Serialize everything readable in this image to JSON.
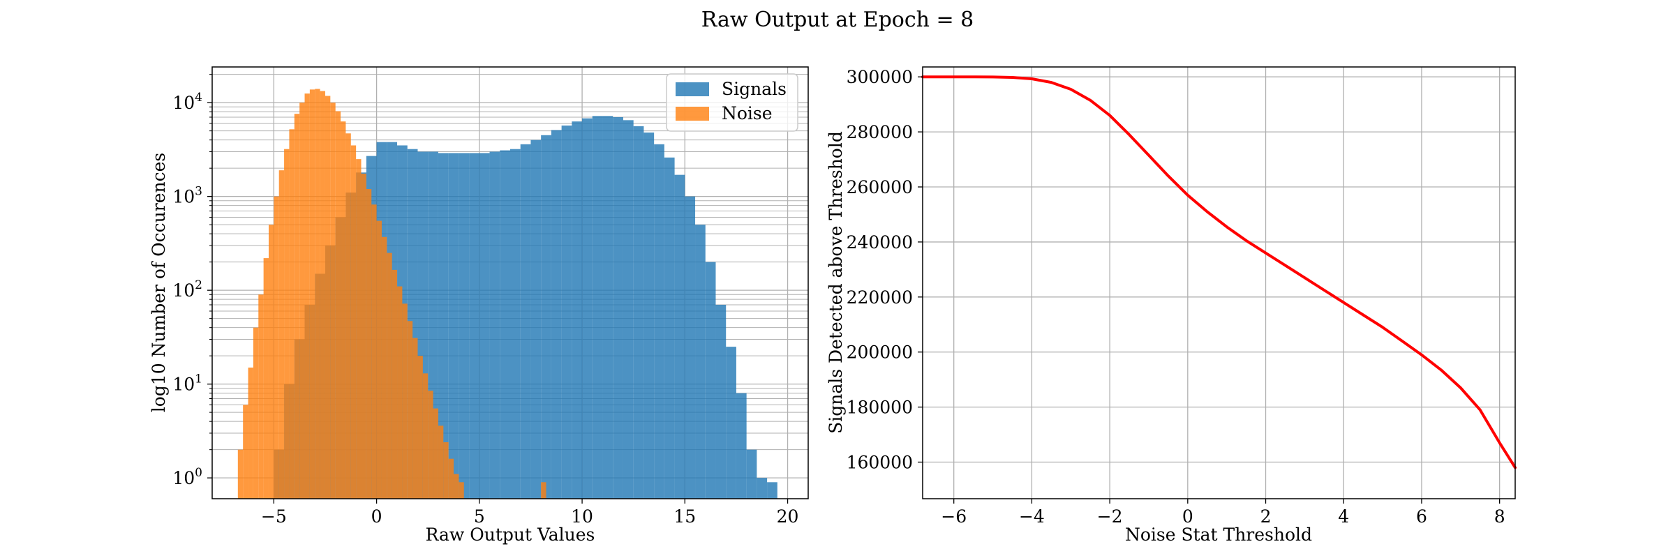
{
  "figure": {
    "title": "Raw Output at Epoch = 8"
  },
  "chart_data": [
    {
      "type": "histogram",
      "xlabel": "Raw Output Values",
      "ylabel": "log10 Number of Occurences",
      "xlim": [
        -8,
        21
      ],
      "ylim": [
        0.6,
        24000
      ],
      "yscale": "log",
      "xticks": [
        -5,
        0,
        5,
        10,
        15,
        20
      ],
      "xtick_labels": [
        "−5",
        "0",
        "5",
        "10",
        "15",
        "20"
      ],
      "yticks": [
        1,
        10,
        100,
        1000,
        10000
      ],
      "ytick_labels": [
        {
          "base": "10",
          "exp": "0"
        },
        {
          "base": "10",
          "exp": "1"
        },
        {
          "base": "10",
          "exp": "2"
        },
        {
          "base": "10",
          "exp": "3"
        },
        {
          "base": "10",
          "exp": "4"
        }
      ],
      "grid": true,
      "legend": "top-right",
      "colors": {
        "Signals": "#1f77b4",
        "Noise": "#ff7f0e"
      },
      "series": [
        {
          "name": "Signals",
          "bin_width": 0.5,
          "bin_starts": [
            -6.5,
            -6,
            -5.5,
            -5,
            -4.5,
            -4,
            -3.5,
            -3,
            -2.5,
            -2,
            -1.5,
            -1,
            -0.5,
            0,
            0.5,
            1,
            1.5,
            2,
            2.5,
            3,
            3.5,
            4,
            4.5,
            5,
            5.5,
            6,
            6.5,
            7,
            7.5,
            8,
            8.5,
            9,
            9.5,
            10,
            10.5,
            11,
            11.5,
            12,
            12.5,
            13,
            13.5,
            14,
            14.5,
            15,
            15.5,
            16,
            16.5,
            17,
            17.5,
            18,
            18.5,
            19
          ],
          "values": [
            0,
            0,
            0,
            2,
            10,
            30,
            70,
            150,
            300,
            600,
            1100,
            1800,
            2700,
            3800,
            3800,
            3500,
            3200,
            3000,
            3000,
            2900,
            2900,
            2900,
            2900,
            2900,
            3000,
            3100,
            3200,
            3600,
            4000,
            4500,
            5100,
            5700,
            6300,
            6800,
            7200,
            7200,
            7000,
            6500,
            5600,
            4800,
            3600,
            2600,
            1700,
            1000,
            500,
            200,
            70,
            25,
            8,
            2,
            1,
            0.9
          ]
        },
        {
          "name": "Noise",
          "bin_width": 0.25,
          "bin_starts": [
            -6.75,
            -6.5,
            -6.25,
            -6,
            -5.75,
            -5.5,
            -5.25,
            -5,
            -4.75,
            -4.5,
            -4.25,
            -4,
            -3.75,
            -3.5,
            -3.25,
            -3,
            -2.75,
            -2.5,
            -2.25,
            -2,
            -1.75,
            -1.5,
            -1.25,
            -1,
            -0.75,
            -0.5,
            -0.25,
            0,
            0.25,
            0.5,
            0.75,
            1,
            1.25,
            1.5,
            1.75,
            2,
            2.25,
            2.5,
            2.75,
            3,
            3.25,
            3.5,
            3.75,
            4,
            4.25,
            4.5,
            4.75,
            5,
            5.25,
            5.5,
            5.75,
            6,
            6.25,
            6.5,
            6.75,
            7,
            7.25,
            7.5,
            7.75,
            8
          ],
          "values": [
            2,
            6,
            15,
            40,
            90,
            220,
            500,
            1000,
            1900,
            3200,
            5200,
            7600,
            10000,
            12500,
            13800,
            14000,
            13300,
            11800,
            10000,
            8100,
            6300,
            4700,
            3500,
            2500,
            1750,
            1200,
            820,
            550,
            370,
            250,
            165,
            110,
            72,
            47,
            31,
            20,
            13,
            8.5,
            5.5,
            3.6,
            2.4,
            1.6,
            1.1,
            0.9,
            0,
            0,
            0,
            0,
            0,
            0,
            0,
            0,
            0,
            0,
            0,
            0,
            0,
            0,
            0,
            0.9
          ]
        }
      ]
    },
    {
      "type": "line",
      "xlabel": "Noise Stat Threshold",
      "ylabel": "Signals Detected above Threshold",
      "xlim": [
        -6.8,
        8.4
      ],
      "ylim": [
        146700,
        303600
      ],
      "xticks": [
        -6,
        -4,
        -2,
        0,
        2,
        4,
        6,
        8
      ],
      "xtick_labels": [
        "−6",
        "−4",
        "−2",
        "0",
        "2",
        "4",
        "6",
        "8"
      ],
      "yticks": [
        160000,
        180000,
        200000,
        220000,
        240000,
        260000,
        280000,
        300000
      ],
      "ytick_labels": [
        "160000",
        "180000",
        "200000",
        "220000",
        "240000",
        "260000",
        "280000",
        "300000"
      ],
      "grid": true,
      "color": "#ff0000",
      "series": [
        {
          "x": [
            -6.8,
            -6,
            -5,
            -4.5,
            -4,
            -3.5,
            -3,
            -2.5,
            -2,
            -1.5,
            -1,
            -0.5,
            0,
            0.5,
            1,
            1.5,
            2,
            2.5,
            3,
            3.5,
            4,
            4.5,
            5,
            5.5,
            6,
            6.5,
            7,
            7.5,
            8,
            8.4
          ],
          "y": [
            300000,
            300000,
            299950,
            299800,
            299300,
            298000,
            295500,
            291500,
            286000,
            279000,
            271500,
            264000,
            257000,
            251000,
            245500,
            240500,
            236000,
            231500,
            227000,
            222500,
            218000,
            213500,
            209000,
            204000,
            199000,
            193500,
            187000,
            179000,
            167000,
            158000
          ]
        }
      ]
    }
  ]
}
